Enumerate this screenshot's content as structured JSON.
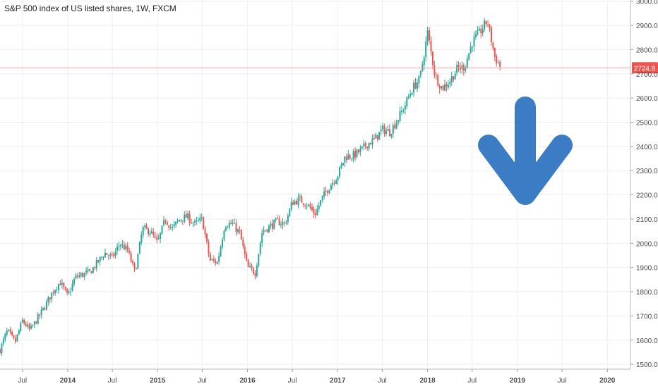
{
  "title": "S&P 500 index of US listed shares, 1W, FXCM",
  "current_price_label": "2724.8",
  "colors": {
    "up": "#26a69a",
    "down": "#ef5350",
    "grid": "#eeeeee",
    "axis_text": "#4a4a4a",
    "price_line": "#f3a0a0",
    "price_tag": "#ef5350",
    "arrow": "#3c7cc4"
  },
  "chart_data": {
    "type": "candlestick",
    "title": "S&P 500 index of US listed shares, 1W, FXCM",
    "x_ticks": [
      "Jul",
      "2014",
      "Jul",
      "2015",
      "Jul",
      "2016",
      "Jul",
      "2017",
      "Jul",
      "2018",
      "Jul",
      "2019",
      "Jul",
      "2020"
    ],
    "y_ticks": [
      "1500.0",
      "1600.0",
      "1700.0",
      "1800.0",
      "1900.0",
      "2000.0",
      "2100.0",
      "2200.0",
      "2300.0",
      "2400.0",
      "2500.0",
      "2600.0",
      "2700.0",
      "2800.0",
      "2900.0",
      "3000.0"
    ],
    "ylim": [
      1480,
      3005
    ],
    "x_range": [
      "2013-04",
      "2020-04"
    ],
    "last_price": 2724.8,
    "annotation": "down-arrow",
    "path": [
      [
        "2013-04",
        1560
      ],
      [
        "2013-05",
        1640
      ],
      [
        "2013-06",
        1590
      ],
      [
        "2013-07",
        1680
      ],
      [
        "2013-08",
        1640
      ],
      [
        "2013-09",
        1690
      ],
      [
        "2013-10",
        1740
      ],
      [
        "2013-11",
        1800
      ],
      [
        "2013-12",
        1840
      ],
      [
        "2014-01",
        1780
      ],
      [
        "2014-02",
        1860
      ],
      [
        "2014-03",
        1870
      ],
      [
        "2014-04",
        1880
      ],
      [
        "2014-05",
        1920
      ],
      [
        "2014-06",
        1960
      ],
      [
        "2014-07",
        1940
      ],
      [
        "2014-08",
        2000
      ],
      [
        "2014-09",
        1970
      ],
      [
        "2014-10",
        1880
      ],
      [
        "2014-11",
        2060
      ],
      [
        "2014-12",
        2050
      ],
      [
        "2015-01",
        2000
      ],
      [
        "2015-02",
        2100
      ],
      [
        "2015-03",
        2060
      ],
      [
        "2015-04",
        2100
      ],
      [
        "2015-05",
        2110
      ],
      [
        "2015-06",
        2080
      ],
      [
        "2015-07",
        2100
      ],
      [
        "2015-08",
        1930
      ],
      [
        "2015-09",
        1920
      ],
      [
        "2015-10",
        2080
      ],
      [
        "2015-11",
        2080
      ],
      [
        "2015-12",
        2040
      ],
      [
        "2016-01",
        1900
      ],
      [
        "2016-02",
        1880
      ],
      [
        "2016-03",
        2050
      ],
      [
        "2016-04",
        2070
      ],
      [
        "2016-05",
        2090
      ],
      [
        "2016-06",
        2080
      ],
      [
        "2016-07",
        2170
      ],
      [
        "2016-08",
        2180
      ],
      [
        "2016-09",
        2160
      ],
      [
        "2016-10",
        2120
      ],
      [
        "2016-11",
        2190
      ],
      [
        "2016-12",
        2240
      ],
      [
        "2017-01",
        2280
      ],
      [
        "2017-02",
        2360
      ],
      [
        "2017-03",
        2360
      ],
      [
        "2017-04",
        2380
      ],
      [
        "2017-05",
        2410
      ],
      [
        "2017-06",
        2430
      ],
      [
        "2017-07",
        2470
      ],
      [
        "2017-08",
        2460
      ],
      [
        "2017-09",
        2510
      ],
      [
        "2017-10",
        2570
      ],
      [
        "2017-11",
        2640
      ],
      [
        "2017-12",
        2680
      ],
      [
        "2018-01",
        2870
      ],
      [
        "2018-02",
        2690
      ],
      [
        "2018-03",
        2640
      ],
      [
        "2018-04",
        2670
      ],
      [
        "2018-05",
        2720
      ],
      [
        "2018-06",
        2730
      ],
      [
        "2018-07",
        2830
      ],
      [
        "2018-08",
        2870
      ],
      [
        "2018-09",
        2920
      ],
      [
        "2018-10",
        2770
      ],
      [
        "2018-10-26",
        2725
      ]
    ]
  }
}
